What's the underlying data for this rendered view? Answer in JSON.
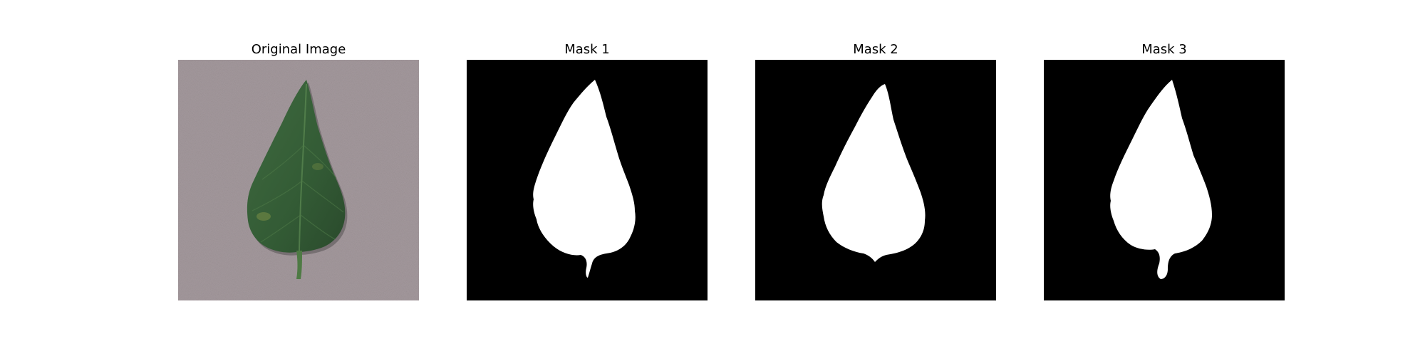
{
  "figure": {
    "panels": [
      {
        "title": "Original Image",
        "kind": "photo",
        "subject": "leaf"
      },
      {
        "title": "Mask 1",
        "kind": "binary-mask"
      },
      {
        "title": "Mask 2",
        "kind": "binary-mask"
      },
      {
        "title": "Mask 3",
        "kind": "binary-mask"
      }
    ]
  },
  "colors": {
    "background": "#a59a9e",
    "leaf": "#3a5c37",
    "leaf_dark": "#27432a",
    "mask_background": "#000000",
    "mask_foreground": "#ffffff"
  }
}
